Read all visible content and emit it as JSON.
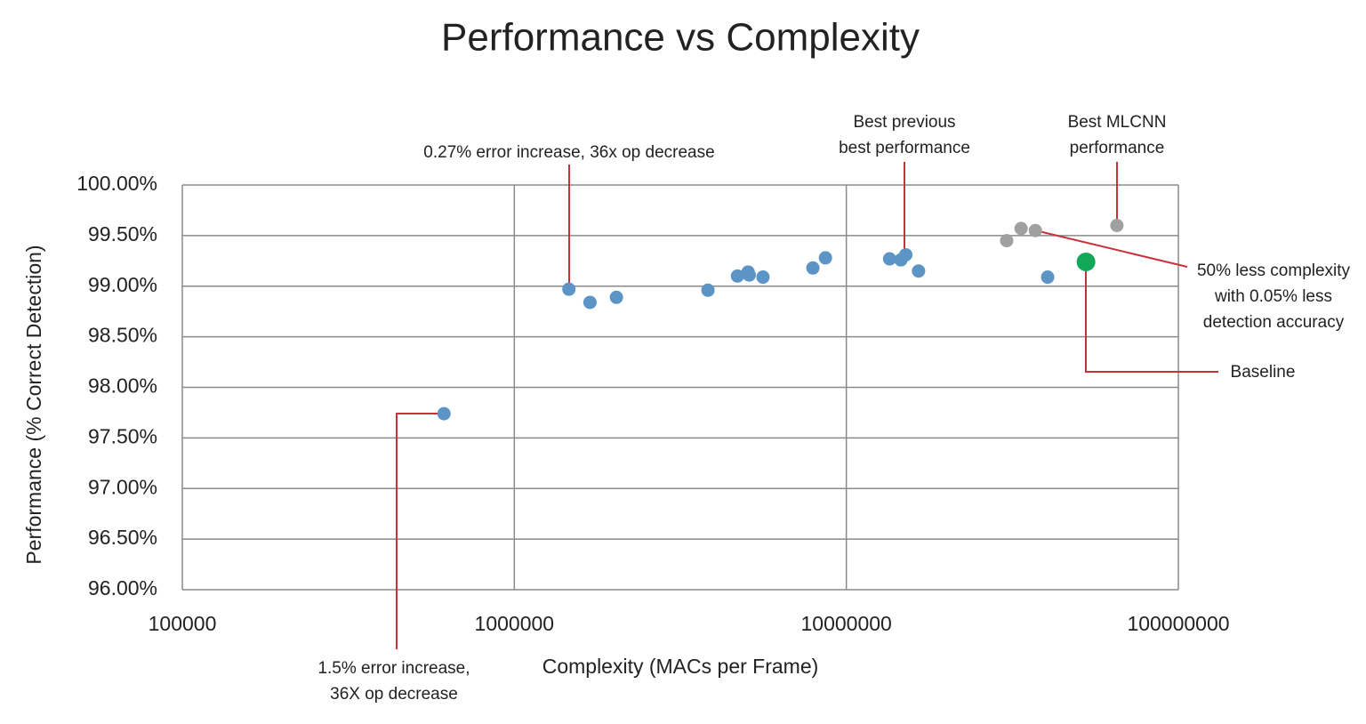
{
  "chart_data": {
    "type": "scatter",
    "title": "Performance vs Complexity",
    "x_label": "Complexity (MACs per Frame)",
    "y_label": "Performance (% Correct Detection)",
    "xscale": "log",
    "grid": true,
    "xlim": [
      100000,
      100000000
    ],
    "xticks": [
      100000,
      1000000,
      10000000,
      100000000
    ],
    "ylim": [
      96,
      100
    ],
    "yticks": [
      {
        "value": 96,
        "label": "96.00%"
      },
      {
        "value": 96.5,
        "label": "96.50%"
      },
      {
        "value": 97,
        "label": "97.00%"
      },
      {
        "value": 97.5,
        "label": "97.50%"
      },
      {
        "value": 98,
        "label": "98.00%"
      },
      {
        "value": 98.5,
        "label": "98.50%"
      },
      {
        "value": 99,
        "label": "99.00%"
      },
      {
        "value": 99.5,
        "label": "99.50%"
      },
      {
        "value": 100,
        "label": "100.00%"
      }
    ],
    "series": [
      {
        "color": "#5b94c5",
        "x": [
          614000,
          1460000,
          1690000,
          2030000,
          3830000,
          4700000,
          5060000,
          5100000,
          5610000,
          7930000,
          8650000,
          13500000,
          14600000,
          15100000,
          16500000,
          40400000
        ],
        "values": [
          97.74,
          98.97,
          98.84,
          98.89,
          98.96,
          99.1,
          99.14,
          99.11,
          99.09,
          99.18,
          99.28,
          99.27,
          99.26,
          99.31,
          99.15,
          99.09
        ]
      },
      {
        "color": "#a0a0a0",
        "x": [
          30400000,
          33600000,
          37100000,
          65300000
        ],
        "values": [
          99.45,
          99.57,
          99.55,
          99.6
        ]
      },
      {
        "color": "#12a85a",
        "x": [
          52700000
        ],
        "values": [
          99.24
        ]
      }
    ],
    "annotations": [
      [
        "0.27% error increase, 36x op decrease"
      ],
      [
        "Best previous",
        "best performance"
      ],
      [
        "Best MLCNN",
        "performance"
      ],
      [
        "50% less complexity",
        "with 0.05% less",
        "detection accuracy"
      ],
      [
        "Baseline"
      ],
      [
        "1.5% error increase,",
        "36X op decrease"
      ]
    ]
  }
}
